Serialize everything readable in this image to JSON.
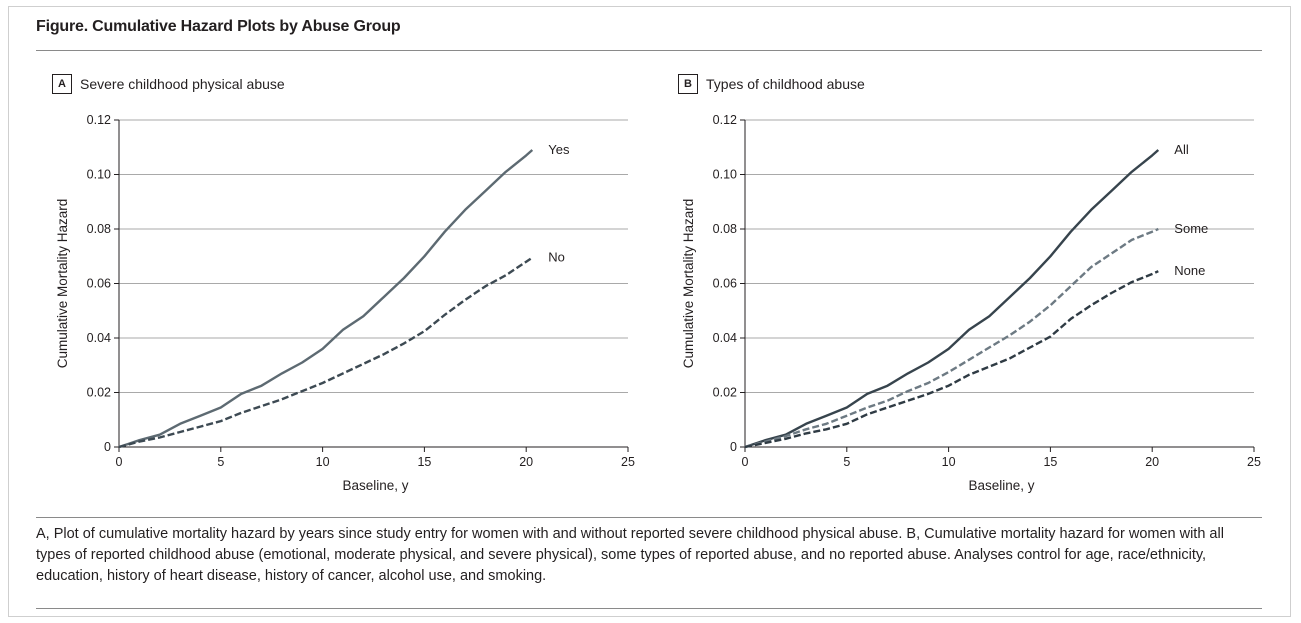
{
  "figure": {
    "title": "Figure. Cumulative Hazard Plots by Abuse Group",
    "caption": "A, Plot of cumulative mortality hazard by years since study entry for women with and without reported severe childhood physical abuse. B, Cumulative mortality hazard for women with all types of reported childhood abuse (emotional, moderate physical, and severe physical), some types of reported abuse, and no reported abuse. Analyses control for age, race/ethnicity, education, history of heart disease, history of cancer, alcohol use, and smoking."
  },
  "chart_data": [
    {
      "panel": "A",
      "title": "Severe childhood physical abuse",
      "type": "line",
      "xlabel": "Baseline, y",
      "ylabel": "Cumulative Mortality Hazard",
      "xlim": [
        0,
        25
      ],
      "ylim": [
        0,
        0.12
      ],
      "xticks": [
        0,
        5,
        10,
        15,
        20,
        25
      ],
      "yticks": [
        0,
        0.02,
        0.04,
        0.06,
        0.08,
        0.1,
        0.12
      ],
      "ytick_labels": [
        "0",
        "0.02",
        "0.04",
        "0.06",
        "0.08",
        "0.10",
        "0.12"
      ],
      "grid": "horizontal",
      "series": [
        {
          "name": "Yes",
          "color": "#5d6a72",
          "dash": "solid",
          "x": [
            0,
            1,
            2,
            3,
            4,
            5,
            6,
            7,
            8,
            9,
            10,
            11,
            12,
            13,
            14,
            15,
            16,
            17,
            18,
            19,
            20,
            20.3
          ],
          "y": [
            0,
            0.0025,
            0.0045,
            0.0085,
            0.0115,
            0.0145,
            0.0195,
            0.0225,
            0.027,
            0.031,
            0.036,
            0.043,
            0.048,
            0.055,
            0.062,
            0.07,
            0.079,
            0.087,
            0.094,
            0.101,
            0.107,
            0.109
          ]
        },
        {
          "name": "No",
          "color": "#3d4a53",
          "dash": "dashed",
          "x": [
            0,
            1,
            2,
            3,
            4,
            5,
            6,
            7,
            8,
            9,
            10,
            11,
            12,
            13,
            14,
            15,
            16,
            17,
            18,
            19,
            20,
            20.3
          ],
          "y": [
            0,
            0.002,
            0.0035,
            0.0055,
            0.0075,
            0.0095,
            0.0125,
            0.015,
            0.0175,
            0.0205,
            0.0235,
            0.027,
            0.0305,
            0.034,
            0.038,
            0.0425,
            0.0485,
            0.054,
            0.059,
            0.063,
            0.068,
            0.0695
          ]
        }
      ]
    },
    {
      "panel": "B",
      "title": "Types of childhood abuse",
      "type": "line",
      "xlabel": "Baseline, y",
      "ylabel": "Cumulative Mortality Hazard",
      "xlim": [
        0,
        25
      ],
      "ylim": [
        0,
        0.12
      ],
      "xticks": [
        0,
        5,
        10,
        15,
        20,
        25
      ],
      "yticks": [
        0,
        0.02,
        0.04,
        0.06,
        0.08,
        0.1,
        0.12
      ],
      "ytick_labels": [
        "0",
        "0.02",
        "0.04",
        "0.06",
        "0.08",
        "0.10",
        "0.12"
      ],
      "grid": "horizontal",
      "series": [
        {
          "name": "All",
          "color": "#37444d",
          "dash": "solid",
          "x": [
            0,
            1,
            2,
            3,
            4,
            5,
            6,
            7,
            8,
            9,
            10,
            11,
            12,
            13,
            14,
            15,
            16,
            17,
            18,
            19,
            20,
            20.3
          ],
          "y": [
            0,
            0.0025,
            0.0045,
            0.0085,
            0.0115,
            0.0145,
            0.0195,
            0.0225,
            0.027,
            0.031,
            0.036,
            0.043,
            0.048,
            0.055,
            0.062,
            0.07,
            0.079,
            0.087,
            0.094,
            0.101,
            0.107,
            0.109
          ]
        },
        {
          "name": "Some",
          "color": "#6d7a83",
          "dash": "dashed",
          "x": [
            0,
            1,
            2,
            3,
            4,
            5,
            6,
            7,
            8,
            9,
            10,
            11,
            12,
            13,
            14,
            15,
            16,
            17,
            18,
            19,
            20,
            20.3
          ],
          "y": [
            0,
            0.002,
            0.004,
            0.0065,
            0.0085,
            0.0115,
            0.0145,
            0.017,
            0.0205,
            0.0235,
            0.0275,
            0.032,
            0.0365,
            0.041,
            0.046,
            0.052,
            0.059,
            0.066,
            0.071,
            0.076,
            0.079,
            0.08
          ]
        },
        {
          "name": "None",
          "color": "#2f3b44",
          "dash": "dashed",
          "x": [
            0,
            1,
            2,
            3,
            4,
            5,
            6,
            7,
            8,
            9,
            10,
            11,
            12,
            13,
            14,
            15,
            16,
            17,
            18,
            19,
            20,
            20.3
          ],
          "y": [
            0,
            0.0015,
            0.003,
            0.005,
            0.0065,
            0.0085,
            0.012,
            0.0145,
            0.017,
            0.0195,
            0.0225,
            0.0265,
            0.0295,
            0.0325,
            0.0365,
            0.0405,
            0.047,
            0.052,
            0.0565,
            0.0605,
            0.0635,
            0.0645
          ]
        }
      ]
    }
  ]
}
